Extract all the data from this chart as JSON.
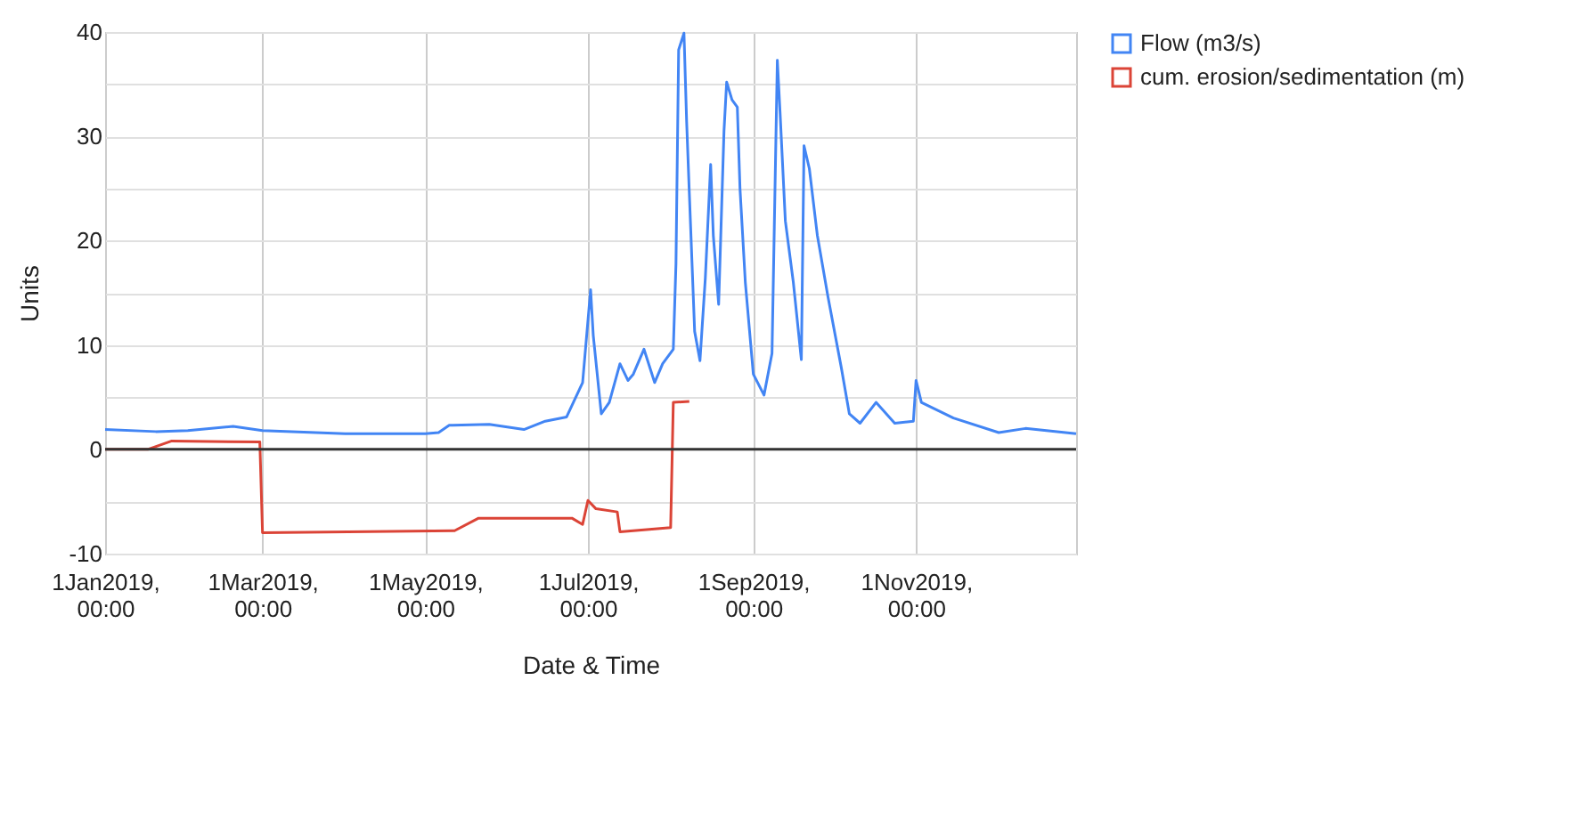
{
  "chart_data": {
    "type": "line",
    "xlabel": "Date & Time",
    "ylabel": "Units",
    "xlim": [
      "2019-01-01",
      "2019-12-31"
    ],
    "xticks": [
      {
        "value": "2019-01-01",
        "label": "1Jan2019, 00:00"
      },
      {
        "value": "2019-03-01",
        "label": "1Mar2019, 00:00"
      },
      {
        "value": "2019-05-01",
        "label": "1May2019, 00:00"
      },
      {
        "value": "2019-07-01",
        "label": "1Jul2019, 00:00"
      },
      {
        "value": "2019-09-01",
        "label": "1Sep2019, 00:00"
      },
      {
        "value": "2019-11-01",
        "label": "1Nov2019, 00:00"
      }
    ],
    "ylim": [
      -10,
      40
    ],
    "yticks": [
      -10,
      {
        "value": -5,
        "label": null
      },
      0,
      {
        "value": 5,
        "label": null
      },
      10,
      {
        "value": 15,
        "label": null
      },
      20,
      {
        "value": 25,
        "label": null
      },
      30,
      {
        "value": 35,
        "label": null
      },
      40
    ],
    "grid": true,
    "legend": "right",
    "line_style": "solid",
    "marker": "none",
    "ref_lines": [
      {
        "axis": "y",
        "value": 0,
        "color": "#333333"
      }
    ],
    "series": [
      {
        "name": "Flow (m3/s)",
        "color": "#4285f4",
        "x": [
          "2019-01-01",
          "2019-01-20",
          "2019-02-01",
          "2019-02-18",
          "2019-03-01",
          "2019-04-01",
          "2019-05-01",
          "2019-05-06",
          "2019-05-10",
          "2019-05-25",
          "2019-06-07",
          "2019-06-15",
          "2019-06-23",
          "2019-06-29",
          "2019-07-02",
          "2019-07-03",
          "2019-07-06",
          "2019-07-09",
          "2019-07-13",
          "2019-07-16",
          "2019-07-18",
          "2019-07-22",
          "2019-07-26",
          "2019-07-29",
          "2019-08-02",
          "2019-08-03",
          "2019-08-04",
          "2019-08-06",
          "2019-08-07",
          "2019-08-08",
          "2019-08-10",
          "2019-08-12",
          "2019-08-14",
          "2019-08-16",
          "2019-08-17",
          "2019-08-19",
          "2019-08-21",
          "2019-08-22",
          "2019-08-24",
          "2019-08-26",
          "2019-08-27",
          "2019-08-29",
          "2019-09-01",
          "2019-09-05",
          "2019-09-08",
          "2019-09-10",
          "2019-09-11",
          "2019-09-13",
          "2019-09-16",
          "2019-09-19",
          "2019-09-20",
          "2019-09-22",
          "2019-09-25",
          "2019-09-29",
          "2019-10-04",
          "2019-10-07",
          "2019-10-11",
          "2019-10-17",
          "2019-10-24",
          "2019-10-31",
          "2019-11-01",
          "2019-11-03",
          "2019-11-15",
          "2019-12-02",
          "2019-12-12",
          "2019-12-31"
        ],
        "values": [
          1.9,
          1.7,
          1.8,
          2.2,
          1.8,
          1.5,
          1.5,
          1.6,
          2.3,
          2.4,
          1.9,
          2.7,
          3.1,
          6.4,
          15.3,
          10.9,
          3.4,
          4.5,
          8.2,
          6.6,
          7.2,
          9.6,
          6.4,
          8.2,
          9.6,
          17.8,
          38.3,
          39.9,
          31.4,
          24.6,
          11.3,
          8.5,
          16.4,
          27.3,
          20.5,
          13.9,
          30.5,
          35.2,
          33.5,
          32.8,
          25.0,
          16.0,
          7.2,
          5.2,
          9.2,
          37.3,
          32.4,
          21.9,
          16.0,
          8.6,
          29.1,
          26.9,
          20.5,
          14.6,
          7.8,
          3.4,
          2.5,
          4.5,
          2.5,
          2.7,
          6.6,
          4.5,
          3.0,
          1.6,
          2.0,
          1.5
        ]
      },
      {
        "name": "cum. erosion/sedimentation (m)",
        "color": "#db4437",
        "x": [
          "2019-01-01",
          "2019-01-17",
          "2019-01-26",
          "2019-02-28",
          "2019-03-01",
          "2019-05-12",
          "2019-05-21",
          "2019-06-25",
          "2019-06-29",
          "2019-07-01",
          "2019-07-04",
          "2019-07-12",
          "2019-07-13",
          "2019-08-01",
          "2019-08-02",
          "2019-08-08"
        ],
        "values": [
          0,
          0,
          0.8,
          0.7,
          -8.0,
          -7.8,
          -6.6,
          -6.6,
          -7.2,
          -4.9,
          -5.7,
          -6.0,
          -7.9,
          -7.5,
          4.5,
          4.6
        ]
      }
    ]
  }
}
